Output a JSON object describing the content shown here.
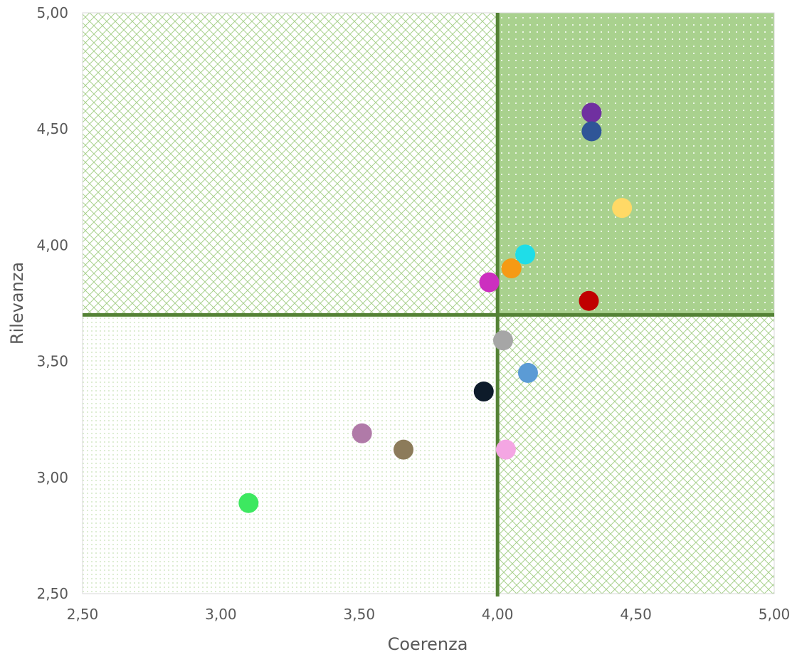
{
  "chart_data": {
    "type": "scatter",
    "xlabel": "Coerenza",
    "ylabel": "Rilevanza",
    "xlim": [
      2.5,
      5.0
    ],
    "ylim": [
      2.5,
      5.0
    ],
    "x_ticks": [
      "2,50",
      "3,00",
      "3,50",
      "4,00",
      "4,50",
      "5,00"
    ],
    "y_ticks": [
      "2,50",
      "3,00",
      "3,50",
      "4,00",
      "4,50",
      "5,00"
    ],
    "grid": false,
    "thresholds": {
      "x": 4.0,
      "y": 3.7
    },
    "quadrant_colors": {
      "top_right": "#a9d18e",
      "pattern": "#a9d18e",
      "divider": "#548235"
    },
    "points": [
      {
        "x": 4.34,
        "y": 4.57,
        "color": "#7030a0"
      },
      {
        "x": 4.34,
        "y": 4.49,
        "color": "#2f5597"
      },
      {
        "x": 4.45,
        "y": 4.16,
        "color": "#ffd966"
      },
      {
        "x": 4.1,
        "y": 3.96,
        "color": "#1fdde8"
      },
      {
        "x": 4.05,
        "y": 3.9,
        "color": "#f59a14"
      },
      {
        "x": 3.97,
        "y": 3.84,
        "color": "#cc2fbf"
      },
      {
        "x": 4.33,
        "y": 3.76,
        "color": "#c00000"
      },
      {
        "x": 4.02,
        "y": 3.59,
        "color": "#a6a6a6"
      },
      {
        "x": 4.11,
        "y": 3.45,
        "color": "#5b9bd5"
      },
      {
        "x": 3.95,
        "y": 3.37,
        "color": "#0d1b2a"
      },
      {
        "x": 3.51,
        "y": 3.19,
        "color": "#b07aa8"
      },
      {
        "x": 3.66,
        "y": 3.12,
        "color": "#8c7b5a"
      },
      {
        "x": 4.03,
        "y": 3.12,
        "color": "#f4a6e3"
      },
      {
        "x": 3.1,
        "y": 2.89,
        "color": "#3de860"
      }
    ]
  }
}
